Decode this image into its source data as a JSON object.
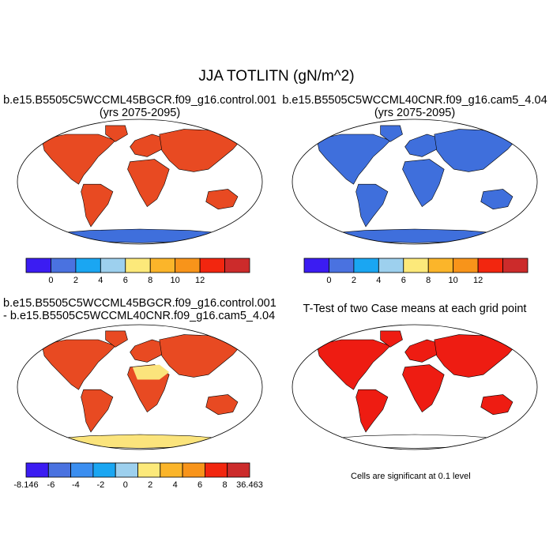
{
  "title": "JJA TOTLITN (gN/m^2)",
  "panels": [
    {
      "line1": "b.e15.B5505C5WCCML45BGCR.f09_g16.control.001",
      "line2": "(yrs 2075-2095)",
      "colorbar": {
        "colors": [
          "#3b1cf2",
          "#4a72e0",
          "#1aa6f2",
          "#9dd0ee",
          "#fce97a",
          "#fbb52a",
          "#f8941a",
          "#f2260f",
          "#cc2b2b"
        ],
        "labels": [
          "0",
          "2",
          "4",
          "6",
          "8",
          "10",
          "12"
        ]
      }
    },
    {
      "line1": "b.e15.B5505C5WCCML40CNR.f09_g16.cam5_4.04",
      "line2": "(yrs 2075-2095)",
      "colorbar": {
        "colors": [
          "#3b1cf2",
          "#4a72e0",
          "#1aa6f2",
          "#9dd0ee",
          "#fce97a",
          "#fbb52a",
          "#f8941a",
          "#f2260f",
          "#cc2b2b"
        ],
        "labels": [
          "0",
          "2",
          "4",
          "6",
          "8",
          "10",
          "12"
        ]
      }
    },
    {
      "line1": "b.e15.B5505C5WCCML45BGCR.f09_g16.control.001",
      "line2": "- b.e15.B5505C5WCCML40CNR.f09_g16.cam5_4.04",
      "colorbar": {
        "colors": [
          "#3b1cf2",
          "#4a72e0",
          "#3b8ef0",
          "#1aa6f2",
          "#9dd0ee",
          "#fce97a",
          "#fbb52a",
          "#f8941a",
          "#f2260f",
          "#cc2b2b"
        ],
        "labels": [
          "-8.146",
          "-6",
          "-4",
          "-2",
          "0",
          "2",
          "4",
          "6",
          "8",
          "36.463"
        ]
      }
    },
    {
      "line1": "T-Test of two Case means at each grid point",
      "note": "Cells are significant at 0.1 level"
    }
  ],
  "map_colors": {
    "ocean": "#ffffff",
    "panel1_land": "#e84a22",
    "panel1_antarctica": "#3f6fdc",
    "panel2_land": "#3f6fdc",
    "panel2_antarctica": "#3f6fdc",
    "panel3_land": "#e84a22",
    "panel3_desert": "#fbe47c",
    "panel3_antarctica": "#fbe47c",
    "panel4_land": "#ee1c12",
    "panel4_antarctica": "#ffffff"
  }
}
